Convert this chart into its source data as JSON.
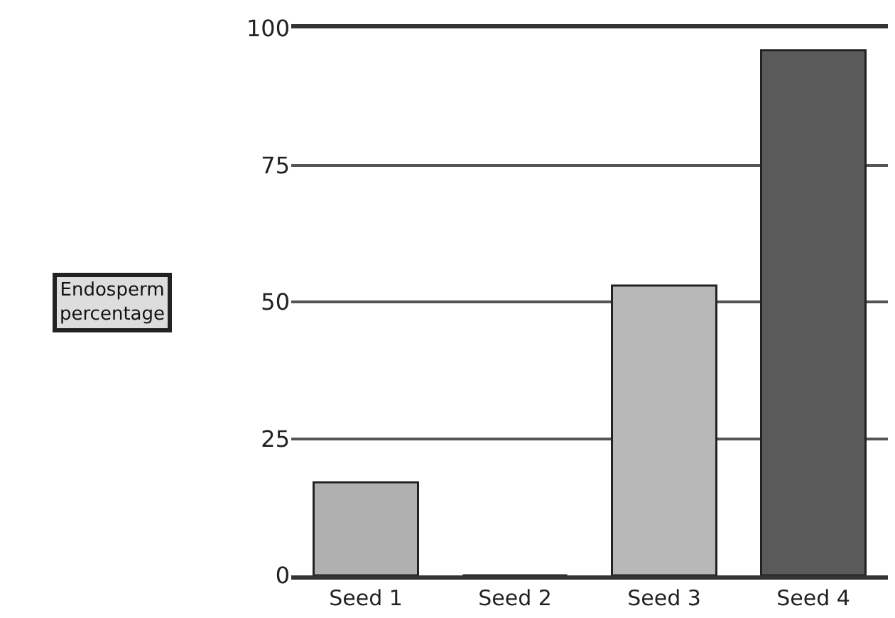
{
  "chart_data": {
    "type": "bar",
    "ylabel": "Endosperm\npercentage",
    "categories": [
      "Seed 1",
      "Seed 2",
      "Seed 3",
      "Seed 4"
    ],
    "values": [
      17,
      0,
      53,
      96
    ],
    "colors": [
      "#b0b0b0",
      "#222222",
      "#b8b8b8",
      "#5a5a5a"
    ],
    "ylim": [
      0,
      100
    ],
    "yticks": [
      0,
      25,
      50,
      75,
      100
    ],
    "grid": "y"
  }
}
